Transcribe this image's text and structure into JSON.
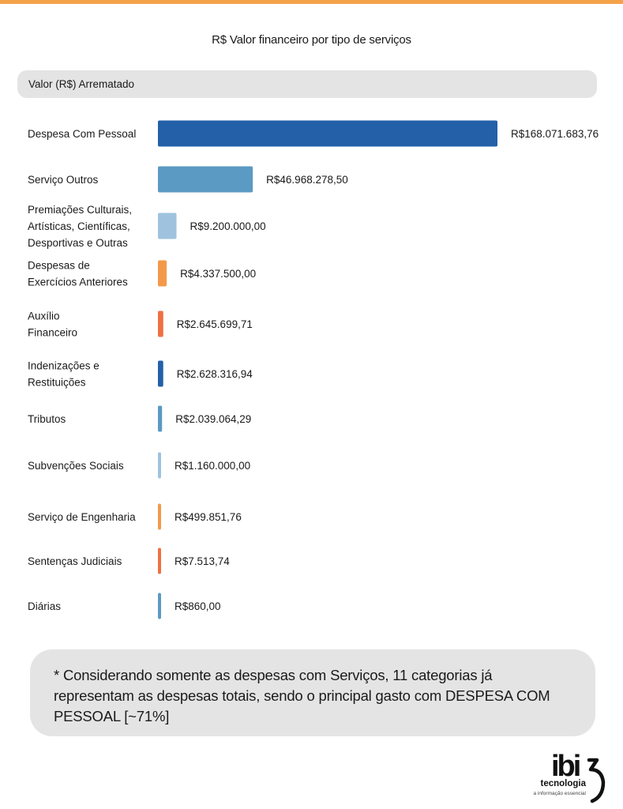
{
  "chart_data": {
    "type": "bar",
    "orientation": "horizontal",
    "title": "R$ Valor financeiro por tipo de serviços",
    "column_header": "Valor (R$) Arrematado",
    "categories": [
      [
        "Despesa Com Pessoal"
      ],
      [
        "Serviço Outros"
      ],
      [
        "Premiações Culturais,",
        "Artísticas, Científicas,",
        "Desportivas e Outras"
      ],
      [
        "Despesas de",
        "Exercícios Anteriores"
      ],
      [
        "Auxílio",
        "Financeiro"
      ],
      [
        "Indenizações e",
        "Restituições"
      ],
      [
        "Tributos"
      ],
      [
        "Subvenções Sociais"
      ],
      [
        "Serviço de Engenharia"
      ],
      [
        "Sentenças Judiciais"
      ],
      [
        "Diárias"
      ]
    ],
    "values": [
      168071683.76,
      46968278.5,
      9200000.0,
      4337500.0,
      2645699.71,
      2628316.94,
      2039064.29,
      1160000.0,
      499851.76,
      7513.74,
      860.0
    ],
    "value_labels": [
      "R$168.071.683,76",
      "R$46.968.278,50",
      "R$9.200.000,00",
      "R$4.337.500,00",
      "R$2.645.699,71",
      "R$2.628.316,94",
      "R$2.039.064,29",
      "R$1.160.000,00",
      "R$499.851,76",
      "R$7.513,74",
      "R$860,00"
    ],
    "colors": [
      "#2360a8",
      "#5b9ac3",
      "#9fc3df",
      "#f39a4a",
      "#ee7142",
      "#2360a8",
      "#5b9ac3",
      "#9fc3df",
      "#f39a4a",
      "#ee7142",
      "#5b9ac3"
    ]
  },
  "footnote": "* Considerando somente as despesas com Serviços, 11 categorias já representam as despesas totais, sendo o principal gasto com DESPESA COM PESSOAL [~71%]",
  "logo": {
    "word": "ibi",
    "line1": "tecnologia",
    "line2": "a informação essencial"
  }
}
